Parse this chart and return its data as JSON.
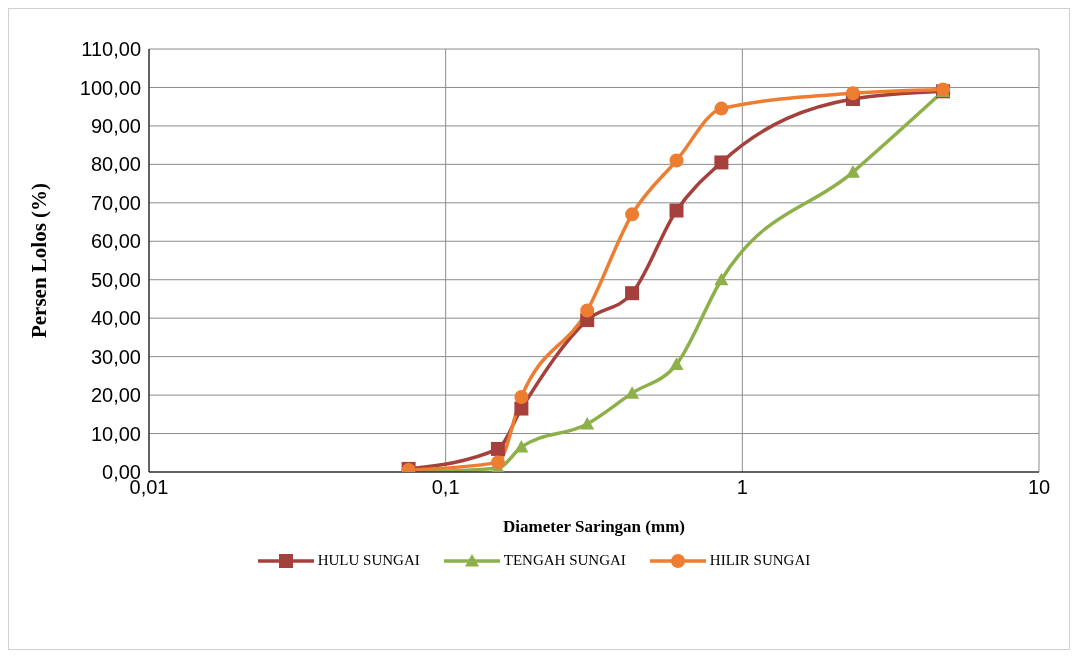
{
  "chart_data": {
    "type": "line",
    "xlabel": "Diameter Saringan (mm)",
    "ylabel": "Persen Lolos (%)",
    "log": "x",
    "x": [
      0.075,
      0.15,
      0.18,
      0.3,
      0.425,
      0.6,
      0.85,
      2.36,
      4.75
    ],
    "series": [
      {
        "name": "HULU SUNGAI",
        "color": "#a5403c",
        "marker": "square",
        "values": [
          0.8,
          6,
          16.5,
          39.5,
          46.5,
          68,
          80.5,
          97,
          99
        ]
      },
      {
        "name": "TENGAH SUNGAI",
        "color": "#8db04a",
        "marker": "triangle",
        "values": [
          0,
          1,
          6.5,
          12.5,
          20.5,
          28,
          50,
          78,
          99
        ]
      },
      {
        "name": "HILIR SUNGAI",
        "color": "#ed7d31",
        "marker": "circle",
        "values": [
          0.5,
          2.5,
          19.5,
          42,
          67,
          81,
          94.5,
          98.5,
          99.5
        ]
      }
    ],
    "xlim": [
      0.01,
      10
    ],
    "xticks": [
      {
        "value": 0.01,
        "label": "0,01"
      },
      {
        "value": 0.1,
        "label": "0,1"
      },
      1,
      10
    ],
    "ylim": [
      0,
      110
    ],
    "yticks": [
      {
        "value": 0,
        "label": "0,00"
      },
      {
        "value": 10,
        "label": "10,00"
      },
      {
        "value": 20,
        "label": "20,00"
      },
      {
        "value": 30,
        "label": "30,00"
      },
      {
        "value": 40,
        "label": "40,00"
      },
      {
        "value": 50,
        "label": "50,00"
      },
      {
        "value": 60,
        "label": "60,00"
      },
      {
        "value": 70,
        "label": "70,00"
      },
      {
        "value": 80,
        "label": "80,00"
      },
      {
        "value": 90,
        "label": "90,00"
      },
      {
        "value": 100,
        "label": "100,00"
      },
      {
        "value": 110,
        "label": "110,00"
      }
    ],
    "grid": true,
    "legend": "bottom",
    "line_style": "solid"
  }
}
